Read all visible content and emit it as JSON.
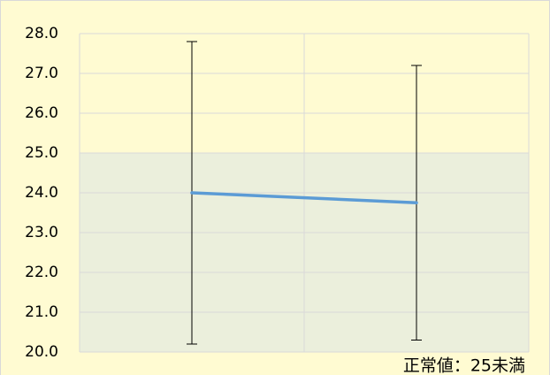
{
  "chart_data": {
    "type": "line",
    "categories": [
      null,
      null
    ],
    "values": [
      24.0,
      23.75
    ],
    "errors": [
      3.8,
      3.45
    ],
    "color": "#5b9bd5",
    "error_color": "#000000",
    "reference_band": [
      20,
      25
    ],
    "band_color": "#ebefdc",
    "annotation": "正常値：25未満",
    "ylim": [
      20,
      28
    ],
    "yticks": [
      {
        "value": 20,
        "label": "20.0"
      },
      {
        "value": 21,
        "label": "21.0"
      },
      {
        "value": 22,
        "label": "22.0"
      },
      {
        "value": 23,
        "label": "23.0"
      },
      {
        "value": 24,
        "label": "24.0"
      },
      {
        "value": 25,
        "label": "25.0"
      },
      {
        "value": 26,
        "label": "26.0"
      },
      {
        "value": 27,
        "label": "27.0"
      },
      {
        "value": 28,
        "label": "28.0"
      }
    ],
    "grid": true
  }
}
